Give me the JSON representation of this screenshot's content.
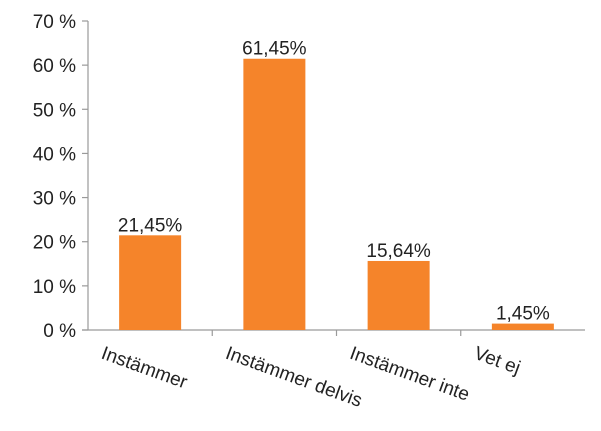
{
  "chart_data": {
    "type": "bar",
    "categories": [
      "Instämmer",
      "Instämmer delvis",
      "Instämmer inte",
      "Vet ej"
    ],
    "values": [
      21.45,
      61.45,
      15.64,
      1.45
    ],
    "data_labels": [
      "21,45%",
      "61,45%",
      "15,64%",
      "1,45%"
    ],
    "yticks": [
      0,
      10,
      20,
      30,
      40,
      50,
      60,
      70
    ],
    "ytick_labels": [
      "0 %",
      "10 %",
      "20 %",
      "30 %",
      "40 %",
      "50 %",
      "60 %",
      "70 %"
    ],
    "ylim": [
      0,
      70
    ],
    "grid": false,
    "bar_color": "#F5842A"
  }
}
